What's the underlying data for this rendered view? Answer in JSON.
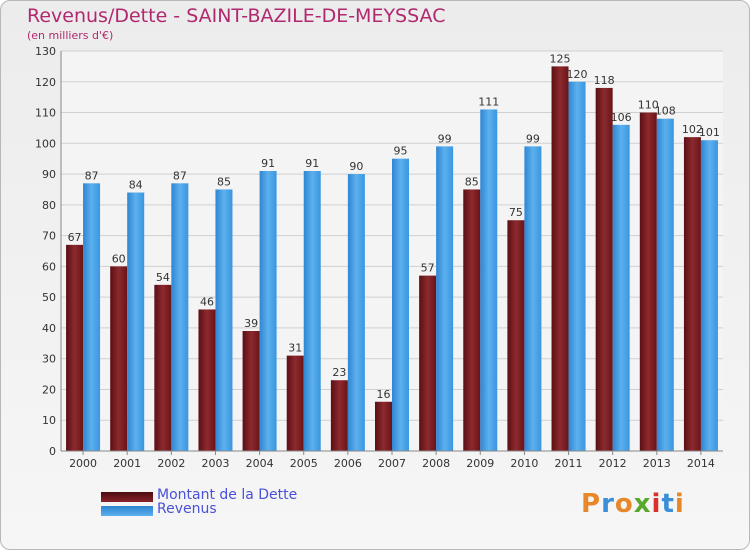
{
  "chart_data": {
    "type": "bar",
    "title": "Revenus/Dette - SAINT-BAZILE-DE-MEYSSAC",
    "subtitle": "(en milliers d'€)",
    "categories": [
      "2000",
      "2001",
      "2002",
      "2003",
      "2004",
      "2005",
      "2006",
      "2007",
      "2008",
      "2009",
      "2010",
      "2011",
      "2012",
      "2013",
      "2014"
    ],
    "series": [
      {
        "name": "Montant de la Dette",
        "color": "#7a1a1f",
        "values": [
          67,
          60,
          54,
          46,
          39,
          31,
          23,
          16,
          57,
          85,
          75,
          125,
          118,
          110,
          102
        ]
      },
      {
        "name": "Revenus",
        "color": "#3a96e0",
        "values": [
          87,
          84,
          87,
          85,
          91,
          91,
          90,
          95,
          99,
          111,
          99,
          120,
          106,
          108,
          101
        ]
      }
    ],
    "ylim": [
      0,
      130
    ],
    "yticks": [
      0,
      10,
      20,
      30,
      40,
      50,
      60,
      70,
      80,
      90,
      100,
      110,
      120,
      130
    ],
    "grid": true,
    "legend_position": "bottom-left"
  },
  "logo": {
    "letters": [
      "P",
      "r",
      "o",
      "x",
      "i",
      "t",
      "i"
    ],
    "colors": [
      "#e8862a",
      "#3a8fd8",
      "#e8862a",
      "#5aa82a",
      "#d8322a",
      "#3a8fd8",
      "#e8862a"
    ]
  }
}
